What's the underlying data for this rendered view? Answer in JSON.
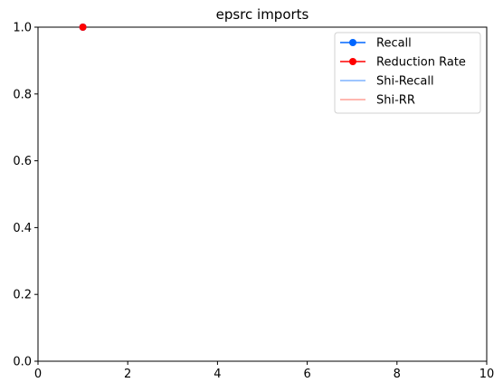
{
  "chart_data": {
    "type": "line",
    "title": "epsrc imports",
    "xlabel": "",
    "ylabel": "",
    "xlim": [
      0,
      10
    ],
    "ylim": [
      0,
      1
    ],
    "xticks": [
      0,
      2,
      4,
      6,
      8,
      10
    ],
    "yticks": [
      0.0,
      0.2,
      0.4,
      0.6,
      0.8,
      1.0
    ],
    "xtick_labels": [
      "0",
      "2",
      "4",
      "6",
      "8",
      "10"
    ],
    "ytick_labels": [
      "0.0",
      "0.2",
      "0.4",
      "0.6",
      "0.8",
      "1.0"
    ],
    "grid": false,
    "legend_position": "top-right",
    "series": [
      {
        "name": "Recall",
        "color": "#0066ff",
        "marker": "circle",
        "x": [
          1
        ],
        "y": [
          1.0
        ]
      },
      {
        "name": "Reduction Rate",
        "color": "#ff0000",
        "marker": "circle",
        "x": [
          1
        ],
        "y": [
          1.0
        ]
      },
      {
        "name": "Shi-Recall",
        "color": "#7fb2ff",
        "marker": "none",
        "x": [],
        "y": []
      },
      {
        "name": "Shi-RR",
        "color": "#ff9f95",
        "marker": "none",
        "x": [],
        "y": []
      }
    ]
  }
}
